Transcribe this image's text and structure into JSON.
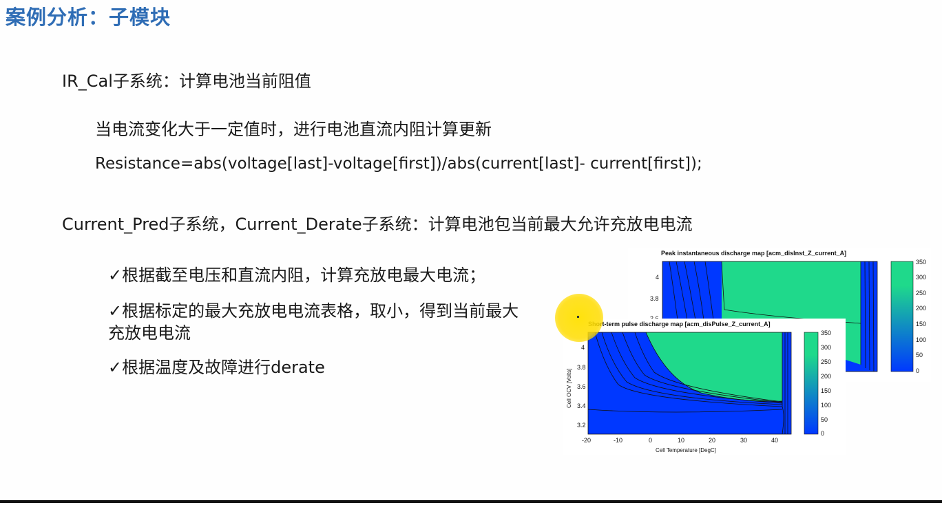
{
  "slide": {
    "title": "案例分析：子模块",
    "ir_heading": "IR_Cal子系统：计算电池当前阻值",
    "ir_desc": "当电流变化大于一定值时，进行电池直流内阻计算更新",
    "ir_formula": "Resistance=abs(voltage[last]-voltage[first])/abs(current[last]- current[first]);",
    "current_heading": "Current_Pred子系统，Current_Derate子系统：计算电池包当前最大允许充放电电流",
    "bullets": [
      {
        "mark": "✓",
        "text": "根据截至电压和直流内阻，计算充放电最大电流；"
      },
      {
        "mark": "✓",
        "text": "根据标定的最大充放电电流表格，取小，得到当前最大"
      },
      {
        "mark": "",
        "text": "充放电电流"
      },
      {
        "mark": "✓",
        "text": "根据温度及故障进行derate"
      }
    ]
  },
  "colors": {
    "title": "#2f6db5",
    "fill_low": "#0038ff",
    "fill_high": "#1fd98b"
  },
  "chart_data": [
    {
      "type": "heatmap",
      "title": "Peak instantaneous discharge map [acm_disInst_Z_current_A]",
      "ylabel": "Cell OCV [Volts]",
      "yticks": [
        "4",
        "3.8",
        "3.6"
      ],
      "colorbar_ticks": [
        "350",
        "300",
        "250",
        "200",
        "150",
        "100",
        "50",
        "0"
      ],
      "colorbar_range": [
        0,
        350
      ]
    },
    {
      "type": "heatmap",
      "title": "Short-term pulse discharge map [acm_disPulse_Z_current_A]",
      "xlabel": "Cell Temperature [DegC]",
      "ylabel": "Cell OCV [Volts]",
      "xticks": [
        "-20",
        "-10",
        "0",
        "10",
        "20",
        "30",
        "40"
      ],
      "yticks": [
        "4",
        "3.8",
        "3.6",
        "3.4",
        "3.2"
      ],
      "colorbar_ticks": [
        "350",
        "300",
        "250",
        "200",
        "150",
        "100",
        "50",
        "0"
      ],
      "xlim": [
        -20,
        45
      ],
      "ylim": [
        3.1,
        4.1
      ],
      "colorbar_range": [
        0,
        350
      ]
    }
  ]
}
